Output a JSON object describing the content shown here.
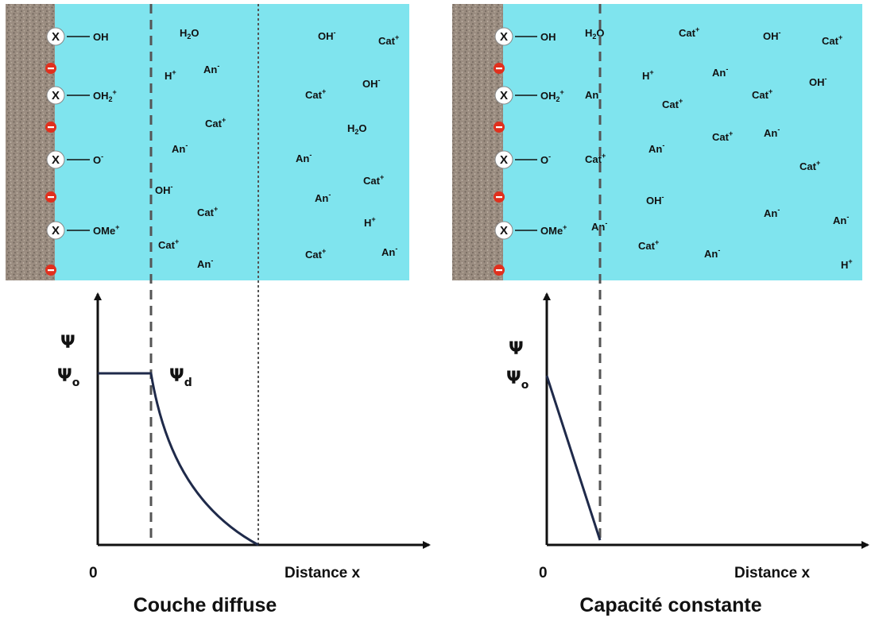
{
  "colors": {
    "solution": "#7fe4ee",
    "solid": "#9a8c80",
    "surface_neg": "#e0301e",
    "curve": "#1f2a4a",
    "ink": "#111111"
  },
  "left": {
    "caption": "Couche diffuse",
    "surface_groups": [
      "OH",
      "OH2+",
      "O-",
      "OMe+"
    ],
    "ions": [
      "H2O",
      "H+",
      "An-",
      "Cat+",
      "An-",
      "OH-",
      "Cat+",
      "Cat+",
      "An-",
      "OH-",
      "Cat+",
      "OH-",
      "Cat+",
      "H2O",
      "An-",
      "Cat+",
      "An-",
      "H+",
      "Cat+",
      "An-"
    ],
    "axis_y": "Ψ",
    "psi_0": "Ψo",
    "psi_d": "Ψd",
    "origin": "0",
    "axis_x": "Distance x"
  },
  "right": {
    "caption": "Capacité constante",
    "surface_groups": [
      "OH",
      "OH2+",
      "O-",
      "OMe+"
    ],
    "ions": [
      "H2O",
      "An-",
      "Cat+",
      "An-",
      "Cat+",
      "OH-",
      "Cat+",
      "H+",
      "An-",
      "Cat+",
      "OH-",
      "An-",
      "Cat+",
      "An-",
      "Cat+",
      "OH-",
      "An-",
      "An-",
      "Cat+",
      "An-",
      "Cat+",
      "H+"
    ],
    "axis_y": "Ψ",
    "psi_0": "Ψo",
    "origin": "0",
    "axis_x": "Distance x"
  }
}
